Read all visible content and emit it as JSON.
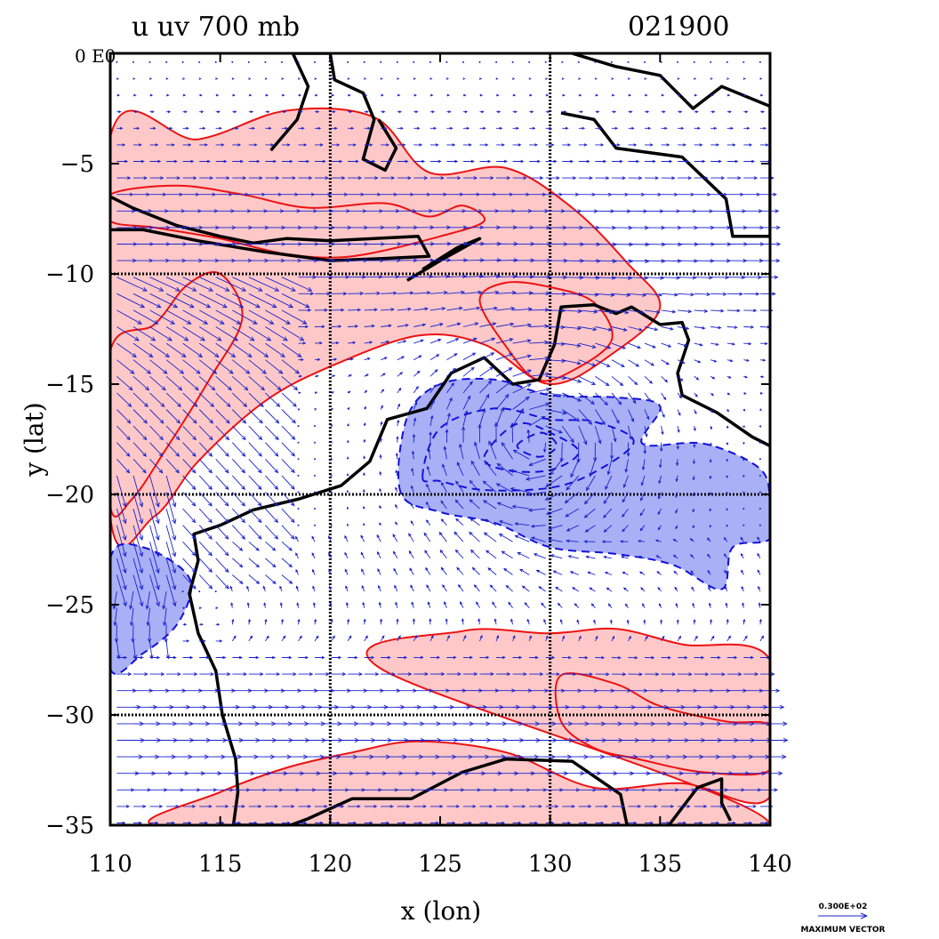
{
  "title": {
    "left": "u  uv 700  mb",
    "right": "021900"
  },
  "corner_label": "0 E0",
  "axes": {
    "x_label": "x (lon)",
    "y_label": "y (lat)",
    "x_range": [
      110,
      140
    ],
    "y_range": [
      -35,
      0
    ],
    "x_ticks": [
      {
        "value": 110,
        "label": "110"
      },
      {
        "value": 115,
        "label": "115"
      },
      {
        "value": 120,
        "label": "120"
      },
      {
        "value": 125,
        "label": "125"
      },
      {
        "value": 130,
        "label": "130"
      },
      {
        "value": 135,
        "label": "135"
      },
      {
        "value": 140,
        "label": "140"
      }
    ],
    "y_ticks": [
      {
        "value": -5,
        "label": "−5"
      },
      {
        "value": -10,
        "label": "−10"
      },
      {
        "value": -15,
        "label": "−15"
      },
      {
        "value": -20,
        "label": "−20"
      },
      {
        "value": -25,
        "label": "−25"
      },
      {
        "value": -30,
        "label": "−30"
      },
      {
        "value": -35,
        "label": "−35"
      }
    ],
    "grid_lons": [
      120,
      130
    ],
    "grid_lats": [
      -10,
      -20,
      -30
    ]
  },
  "legend": {
    "value": "0.300E+02",
    "caption": "MAXIMUM VECTOR"
  },
  "colors": {
    "positive_fill": "#ffc8c8",
    "positive_line": "#ee1111",
    "negative_fill": "#aab0f5",
    "negative_line": "#1111dd",
    "vector": "#1a22cc",
    "coast": "#000000"
  },
  "field": {
    "positive_regions": [
      {
        "name": "northern-westerly-band",
        "points": [
          [
            110,
            -3.8
          ],
          [
            114,
            -3.9
          ],
          [
            118,
            -2.6
          ],
          [
            122,
            -2.9
          ],
          [
            124.5,
            -5.4
          ],
          [
            128,
            -5.2
          ],
          [
            131,
            -7
          ],
          [
            133.5,
            -9.5
          ],
          [
            135,
            -11.5
          ],
          [
            133,
            -13.5
          ],
          [
            130,
            -15
          ],
          [
            127,
            -13.2
          ],
          [
            124,
            -12.8
          ],
          [
            120,
            -14.2
          ],
          [
            117,
            -15.8
          ],
          [
            114,
            -18.5
          ],
          [
            112,
            -21
          ],
          [
            110,
            -21
          ]
        ]
      },
      {
        "name": "southern-westerly-band",
        "points": [
          [
            122.3,
            -27.9
          ],
          [
            126,
            -26.2
          ],
          [
            130,
            -26.3
          ],
          [
            133,
            -26.1
          ],
          [
            136,
            -26.8
          ],
          [
            140,
            -27.5
          ],
          [
            140,
            -33.7
          ],
          [
            136,
            -33.1
          ],
          [
            132,
            -33.3
          ],
          [
            128,
            -31.7
          ],
          [
            124,
            -31.2
          ],
          [
            121,
            -31.7
          ],
          [
            118,
            -32.4
          ],
          [
            115,
            -33.5
          ],
          [
            112,
            -35
          ],
          [
            122,
            -35
          ],
          [
            140,
            -35
          ]
        ]
      }
    ],
    "positive_inner_contours": [
      [
        [
          110,
          -6.4
        ],
        [
          113,
          -6
        ],
        [
          116,
          -6.4
        ],
        [
          119,
          -7
        ],
        [
          122.5,
          -6.8
        ],
        [
          124.5,
          -7.4
        ],
        [
          126,
          -6.9
        ],
        [
          127,
          -7.6
        ],
        [
          125,
          -8.3
        ],
        [
          121,
          -9.2
        ],
        [
          118,
          -9.1
        ],
        [
          115,
          -8.4
        ],
        [
          112,
          -7.9
        ],
        [
          110,
          -7.6
        ]
      ],
      [
        [
          110,
          -13.5
        ],
        [
          112,
          -12.3
        ],
        [
          113.5,
          -10.5
        ],
        [
          115,
          -10
        ],
        [
          116,
          -12
        ],
        [
          114.5,
          -14.8
        ],
        [
          112.5,
          -18
        ],
        [
          111,
          -20.2
        ],
        [
          110,
          -20.5
        ]
      ],
      [
        [
          130.5,
          -28.2
        ],
        [
          133,
          -28.6
        ],
        [
          135,
          -29.6
        ],
        [
          138,
          -30.3
        ],
        [
          140,
          -30.5
        ],
        [
          140,
          -32.5
        ],
        [
          137,
          -32.6
        ],
        [
          134,
          -32
        ],
        [
          132,
          -31.5
        ],
        [
          130.5,
          -30.3
        ]
      ],
      [
        [
          126.8,
          -11.2
        ],
        [
          128,
          -13.3
        ],
        [
          129.4,
          -14.8
        ],
        [
          131,
          -14.4
        ],
        [
          132.8,
          -13
        ],
        [
          132,
          -11.3
        ],
        [
          130,
          -10.6
        ],
        [
          128,
          -10.4
        ]
      ]
    ],
    "negative_regions": [
      {
        "name": "northwest-cyclone",
        "points": [
          [
            123.2,
            -19.9
          ],
          [
            123.5,
            -16.5
          ],
          [
            125,
            -15
          ],
          [
            127.5,
            -14.8
          ],
          [
            130,
            -15.5
          ],
          [
            133,
            -15.6
          ],
          [
            135,
            -16
          ],
          [
            134.2,
            -17.7
          ],
          [
            137,
            -17.7
          ],
          [
            139.5,
            -18.8
          ],
          [
            140,
            -20.2
          ],
          [
            140,
            -22
          ],
          [
            138.3,
            -22.4
          ],
          [
            137.8,
            -24.3
          ],
          [
            135.6,
            -23.2
          ],
          [
            133,
            -22.7
          ],
          [
            130,
            -22.4
          ],
          [
            127.5,
            -21.3
          ],
          [
            125,
            -20.8
          ]
        ]
      },
      {
        "name": "western-offshore-trough",
        "points": [
          [
            110,
            -22.9
          ],
          [
            111.5,
            -22.4
          ],
          [
            113.6,
            -23.8
          ],
          [
            113.1,
            -25.8
          ],
          [
            111.5,
            -27.2
          ],
          [
            110,
            -27.9
          ]
        ]
      }
    ],
    "negative_inner_contours": [
      [
        [
          124.2,
          -19.2
        ],
        [
          125,
          -17
        ],
        [
          127.5,
          -16.1
        ],
        [
          130,
          -16.6
        ],
        [
          132,
          -16.7
        ],
        [
          133.8,
          -17.6
        ],
        [
          132,
          -19
        ],
        [
          130,
          -19.7
        ],
        [
          127,
          -19.8
        ],
        [
          125,
          -19.4
        ]
      ],
      [
        [
          127,
          -18.3
        ],
        [
          128.5,
          -16.8
        ],
        [
          130.2,
          -17.3
        ],
        [
          131.3,
          -18.1
        ],
        [
          130,
          -18.9
        ],
        [
          128,
          -18.9
        ]
      ],
      [
        [
          128.5,
          -17.8
        ],
        [
          129.6,
          -17.2
        ],
        [
          130.3,
          -17.8
        ],
        [
          129.5,
          -18.3
        ]
      ]
    ],
    "vortex_center": [
      129.5,
      -17.6
    ]
  },
  "coastlines": [
    {
      "name": "australia-coast",
      "points": [
        [
          133.5,
          -35
        ],
        [
          133.2,
          -33.6
        ],
        [
          131,
          -32.1
        ],
        [
          128,
          -32
        ],
        [
          126,
          -32.6
        ],
        [
          123.7,
          -33.8
        ],
        [
          121,
          -33.8
        ],
        [
          119,
          -34.7
        ],
        [
          118.2,
          -35
        ],
        [
          115.6,
          -35
        ],
        [
          115.8,
          -33.5
        ],
        [
          115.7,
          -32
        ],
        [
          115.1,
          -30
        ],
        [
          114.8,
          -28
        ],
        [
          114,
          -26.3
        ],
        [
          113.6,
          -24.5
        ],
        [
          114,
          -23
        ],
        [
          113.8,
          -21.8
        ],
        [
          115,
          -21.4
        ],
        [
          116.5,
          -20.7
        ],
        [
          118.6,
          -20.2
        ],
        [
          120.5,
          -19.6
        ],
        [
          121.8,
          -18.5
        ],
        [
          122.6,
          -16.6
        ],
        [
          124.4,
          -16.1
        ],
        [
          125.5,
          -14.5
        ],
        [
          127,
          -13.8
        ],
        [
          128.3,
          -15
        ],
        [
          129.5,
          -14.8
        ],
        [
          130.2,
          -13.2
        ],
        [
          130.5,
          -11.5
        ],
        [
          132,
          -11.4
        ],
        [
          133,
          -11.8
        ],
        [
          133.7,
          -11.5
        ],
        [
          135,
          -12.3
        ],
        [
          136,
          -12.2
        ],
        [
          136.3,
          -13
        ],
        [
          135.8,
          -14.5
        ],
        [
          136,
          -15.5
        ],
        [
          137.6,
          -16.3
        ],
        [
          139.2,
          -17.4
        ],
        [
          140,
          -17.8
        ]
      ]
    },
    {
      "name": "australia-southeast",
      "points": [
        [
          135.4,
          -35
        ],
        [
          136.7,
          -33.3
        ],
        [
          137.8,
          -32.9
        ],
        [
          137.8,
          -34
        ],
        [
          138.2,
          -34.8
        ]
      ]
    },
    {
      "name": "sumatra-java",
      "points": [
        [
          110,
          -6.5
        ],
        [
          111,
          -7
        ],
        [
          113,
          -7.8
        ],
        [
          115,
          -8.3
        ],
        [
          116.5,
          -8.6
        ],
        [
          118,
          -8.4
        ],
        [
          120,
          -8.5
        ],
        [
          122,
          -8.4
        ],
        [
          124,
          -8.3
        ],
        [
          124.5,
          -9.2
        ],
        [
          122.5,
          -9.3
        ],
        [
          120,
          -9.4
        ],
        [
          117,
          -9
        ],
        [
          114,
          -8.5
        ],
        [
          111.5,
          -8
        ],
        [
          110,
          -8
        ]
      ]
    },
    {
      "name": "timor",
      "points": [
        [
          123.5,
          -10.3
        ],
        [
          125,
          -9.4
        ],
        [
          126.8,
          -8.4
        ],
        [
          125.8,
          -8.8
        ],
        [
          124.2,
          -9.8
        ]
      ]
    },
    {
      "name": "borneo-sulawesi",
      "points": [
        [
          117.3,
          -4.4
        ],
        [
          118.5,
          -3
        ],
        [
          119,
          -1.5
        ],
        [
          118.3,
          0
        ],
        [
          120,
          0
        ],
        [
          120.2,
          -1.2
        ],
        [
          121.5,
          -1.8
        ],
        [
          122,
          -3
        ],
        [
          121.5,
          -4.8
        ],
        [
          122.5,
          -5.3
        ],
        [
          123,
          -4.3
        ],
        [
          122.2,
          -3
        ]
      ]
    },
    {
      "name": "papua",
      "points": [
        [
          131,
          0
        ],
        [
          133,
          -0.6
        ],
        [
          135,
          -1
        ],
        [
          136.5,
          -2.5
        ],
        [
          137.8,
          -1.5
        ],
        [
          140,
          -2.4
        ],
        [
          140,
          -8.3
        ],
        [
          138.3,
          -8.3
        ],
        [
          138,
          -6.6
        ],
        [
          136,
          -4.7
        ],
        [
          133,
          -4.3
        ],
        [
          132,
          -3
        ],
        [
          130.5,
          -2.7
        ]
      ]
    }
  ]
}
